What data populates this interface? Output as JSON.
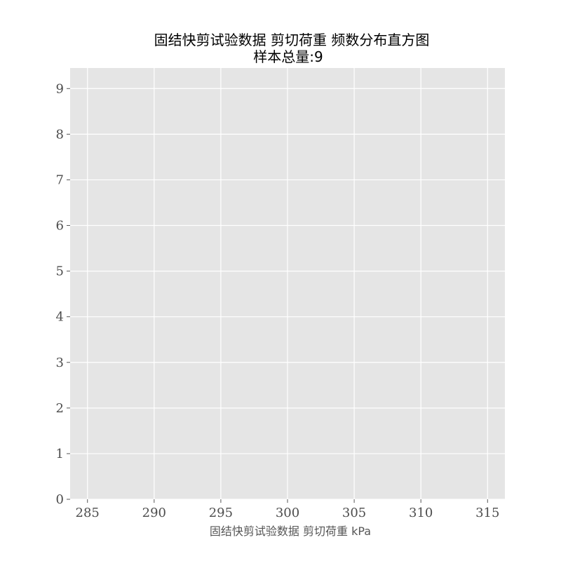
{
  "chart_data": {
    "type": "bar",
    "title": "固结快剪试验数据 剪切荷重 频数分布直方图",
    "subtitle": "样本总量:9",
    "xlabel": "固结快剪试验数据 剪切荷重 kPa",
    "ylabel": "",
    "xlim": [
      283.7,
      316.3
    ],
    "ylim": [
      0,
      9.45
    ],
    "x_ticks": [
      285,
      290,
      295,
      300,
      305,
      310,
      315
    ],
    "y_ticks": [
      0,
      1,
      2,
      3,
      4,
      5,
      6,
      7,
      8,
      9
    ],
    "values": [],
    "grid": true,
    "colors": {
      "plot_background": "#e5e5e5",
      "grid": "#ffffff",
      "tick_text": "#4d4d4d",
      "title_text": "#000000"
    }
  }
}
